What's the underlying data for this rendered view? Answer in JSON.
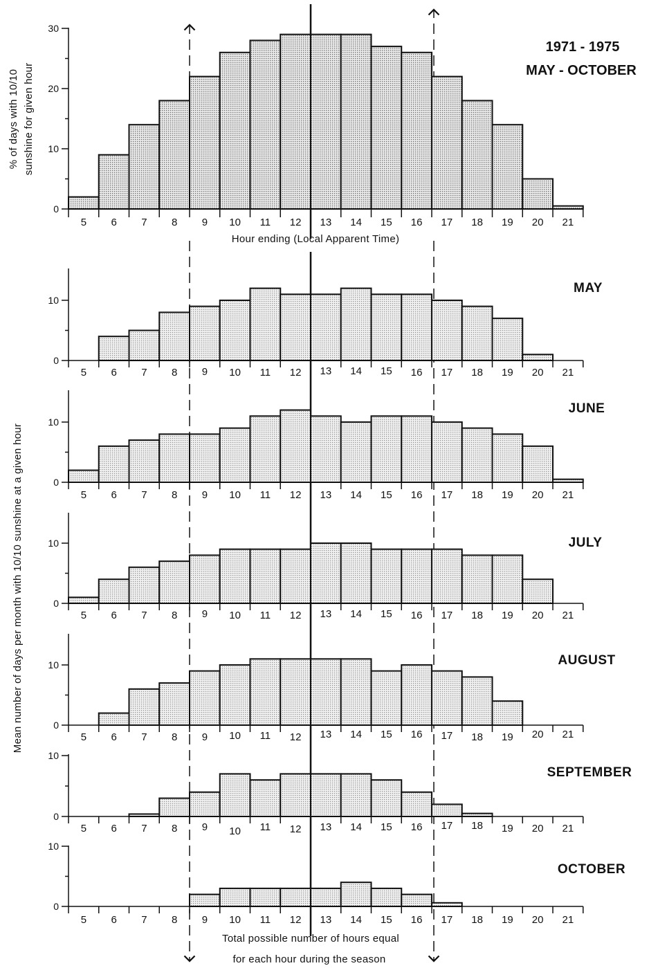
{
  "header": {
    "years": "1971 - 1975",
    "season": "MAY - OCTOBER"
  },
  "top_ylabel": {
    "line1": "% of days with 10/10",
    "line2": "sunshine for given hour"
  },
  "top_xlabel": "Hour ending (Local Apparent Time)",
  "bottom_ylabel": "Mean number of days per month with 10/10 sunshine at a given hour",
  "bottom_note": {
    "line1": "Total possible number of hours equal",
    "line2": "for each hour during the season"
  },
  "chart_data": [
    {
      "type": "bar",
      "id": "season",
      "title": "1971 - 1975 MAY - OCTOBER",
      "xlabel": "Hour ending (Local Apparent Time)",
      "ylabel": "% of days with 10/10 sunshine for given hour",
      "categories": [
        "5",
        "6",
        "7",
        "8",
        "9",
        "10",
        "11",
        "12",
        "13",
        "14",
        "15",
        "16",
        "17",
        "18",
        "19",
        "20",
        "21"
      ],
      "values": [
        2,
        9,
        14,
        18,
        22,
        26,
        28,
        29,
        29,
        29,
        27,
        26,
        22,
        18,
        14,
        5,
        0.5
      ],
      "ylim": [
        0,
        30
      ],
      "yticks": [
        0,
        10,
        20,
        30
      ]
    },
    {
      "type": "bar",
      "id": "may",
      "title": "MAY",
      "categories": [
        "5",
        "6",
        "7",
        "8",
        "9",
        "10",
        "11",
        "12",
        "13",
        "14",
        "15",
        "16",
        "17",
        "18",
        "19",
        "20",
        "21"
      ],
      "values": [
        0,
        4,
        5,
        8,
        9,
        10,
        12,
        11,
        11,
        12,
        11,
        11,
        10,
        9,
        7,
        1,
        0
      ],
      "ylim": [
        0,
        15
      ],
      "yticks": [
        0,
        10
      ]
    },
    {
      "type": "bar",
      "id": "june",
      "title": "JUNE",
      "categories": [
        "5",
        "6",
        "7",
        "8",
        "9",
        "10",
        "11",
        "12",
        "13",
        "14",
        "15",
        "16",
        "17",
        "18",
        "19",
        "20",
        "21"
      ],
      "values": [
        2,
        6,
        7,
        8,
        8,
        9,
        11,
        12,
        11,
        10,
        11,
        11,
        10,
        9,
        8,
        6,
        0.5
      ],
      "ylim": [
        0,
        15
      ],
      "yticks": [
        0,
        10
      ]
    },
    {
      "type": "bar",
      "id": "july",
      "title": "JULY",
      "categories": [
        "5",
        "6",
        "7",
        "8",
        "9",
        "10",
        "11",
        "12",
        "13",
        "14",
        "15",
        "16",
        "17",
        "18",
        "19",
        "20",
        "21"
      ],
      "values": [
        1,
        4,
        6,
        7,
        8,
        9,
        9,
        9,
        10,
        10,
        9,
        9,
        9,
        8,
        8,
        4,
        0
      ],
      "ylim": [
        0,
        15
      ],
      "yticks": [
        0,
        10
      ]
    },
    {
      "type": "bar",
      "id": "august",
      "title": "AUGUST",
      "categories": [
        "5",
        "6",
        "7",
        "8",
        "9",
        "10",
        "11",
        "12",
        "13",
        "14",
        "15",
        "16",
        "17",
        "18",
        "19",
        "20",
        "21"
      ],
      "values": [
        0,
        2,
        6,
        7,
        9,
        10,
        11,
        11,
        11,
        11,
        9,
        10,
        9,
        8,
        4,
        0,
        0
      ],
      "ylim": [
        0,
        15
      ],
      "yticks": [
        0,
        10
      ]
    },
    {
      "type": "bar",
      "id": "september",
      "title": "SEPTEMBER",
      "categories": [
        "5",
        "6",
        "7",
        "8",
        "9",
        "10",
        "11",
        "12",
        "13",
        "14",
        "15",
        "16",
        "17",
        "18",
        "19",
        "20",
        "21"
      ],
      "values": [
        0,
        0,
        0.4,
        3,
        4,
        7,
        6,
        7,
        7,
        7,
        6,
        4,
        2,
        0.5,
        0,
        0,
        0
      ],
      "ylim": [
        0,
        10
      ],
      "yticks": [
        0,
        10
      ]
    },
    {
      "type": "bar",
      "id": "october",
      "title": "OCTOBER",
      "categories": [
        "5",
        "6",
        "7",
        "8",
        "9",
        "10",
        "11",
        "12",
        "13",
        "14",
        "15",
        "16",
        "17",
        "18",
        "19",
        "20",
        "21"
      ],
      "values": [
        0,
        0,
        0,
        0,
        2,
        3,
        3,
        3,
        3,
        4,
        3,
        2,
        0.6,
        0,
        0,
        0,
        0
      ],
      "ylim": [
        0,
        10
      ],
      "yticks": [
        0,
        10
      ]
    }
  ]
}
